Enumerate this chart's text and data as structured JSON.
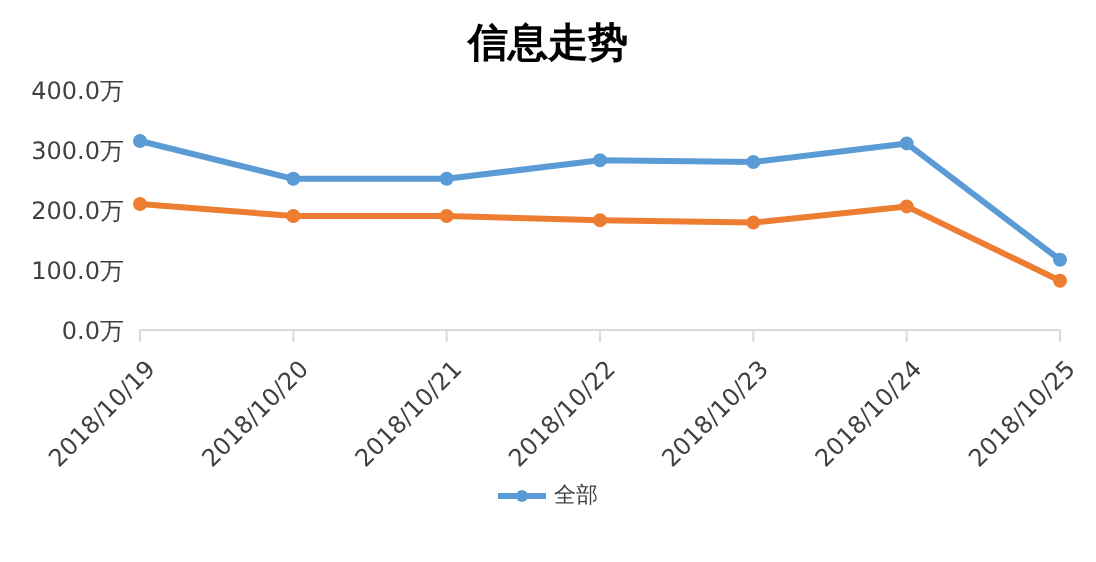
{
  "chart_data": {
    "type": "line",
    "title": "信息走势",
    "categories": [
      "2018/10/19",
      "2018/10/20",
      "2018/10/21",
      "2018/10/22",
      "2018/10/23",
      "2018/10/24",
      "2018/10/25"
    ],
    "series": [
      {
        "name": "全部",
        "color": "#5b9bd5",
        "values": [
          315,
          252,
          252,
          283,
          280,
          311,
          117
        ]
      },
      {
        "color": "#ed7d31",
        "values": [
          210,
          190,
          190,
          183,
          179,
          206,
          82
        ]
      }
    ],
    "ylim": [
      0,
      400
    ],
    "yticks": [
      {
        "value": 0,
        "label": "0.0万"
      },
      {
        "value": 100,
        "label": "100.0万"
      },
      {
        "value": 200,
        "label": "200.0万"
      },
      {
        "value": 300,
        "label": "300.0万"
      },
      {
        "value": 400,
        "label": "400.0万"
      }
    ],
    "grid": false,
    "legend": "bottom",
    "marker": "circle",
    "line_style": "solid"
  }
}
